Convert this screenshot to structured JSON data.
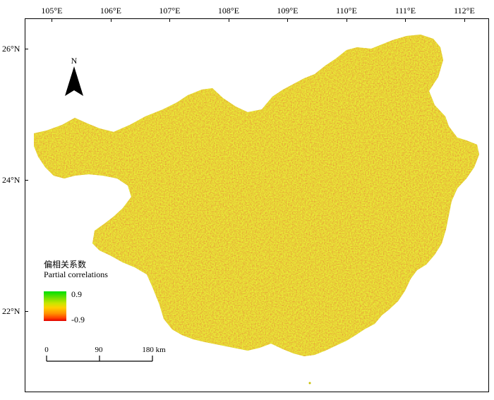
{
  "axes": {
    "longitude_labels": [
      "105°E",
      "106°E",
      "107°E",
      "108°E",
      "109°E",
      "110°E",
      "111°E",
      "112°E"
    ],
    "longitude_values": [
      105,
      106,
      107,
      108,
      109,
      110,
      111,
      112
    ],
    "latitude_labels": [
      "26°N",
      "24°N",
      "22°N"
    ],
    "latitude_values": [
      26,
      24,
      22
    ]
  },
  "north_arrow": {
    "label": "N"
  },
  "legend": {
    "title_cn": "偏相关系数",
    "title_en": "Partial correlations",
    "max_label": "0.9",
    "min_label": "-0.9",
    "colors": [
      "#00e000",
      "#c8e600",
      "#ffd000",
      "#ff9000",
      "#e00000"
    ]
  },
  "scale": {
    "labels": [
      "0",
      "90",
      "180 km"
    ]
  },
  "map": {
    "region_fill": "#b8d21e"
  }
}
